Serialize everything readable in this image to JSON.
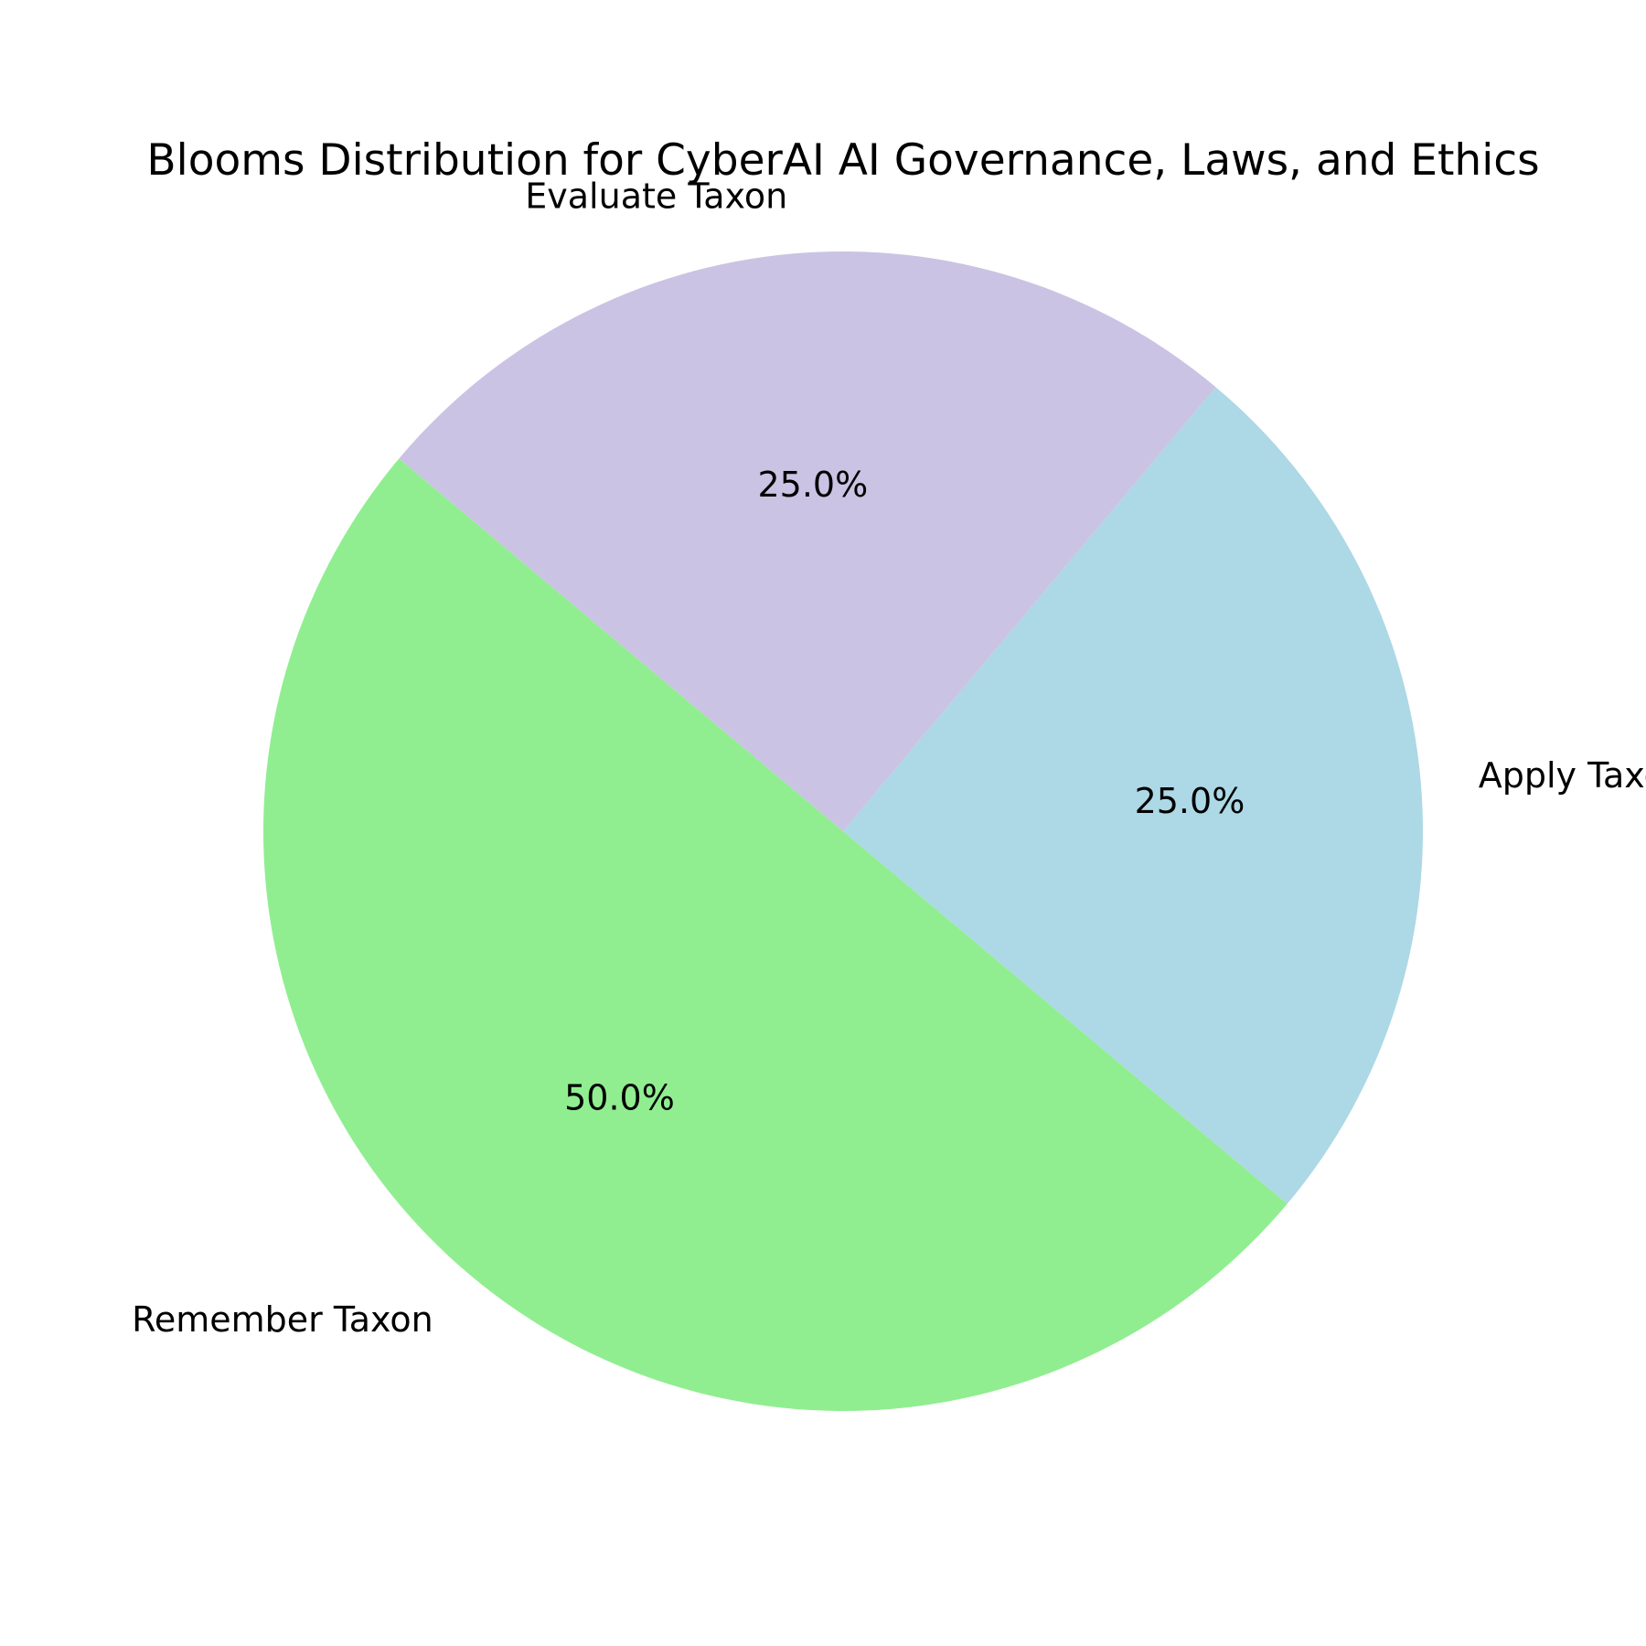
{
  "chart_data": {
    "type": "pie",
    "title": "Blooms Distribution for CyberAI AI Governance, Laws, and Ethics",
    "start_angle_deg": 140,
    "direction": "counterclockwise",
    "slices": [
      {
        "label": "Remember Taxon",
        "value": 50.0,
        "display": "50.0%",
        "color": "#90ee90"
      },
      {
        "label": "Apply Taxon",
        "value": 25.0,
        "display": "25.0%",
        "color": "#add8e6"
      },
      {
        "label": "Evaluate Taxon",
        "value": 25.0,
        "display": "25.0%",
        "color": "#cbc3e3"
      }
    ]
  }
}
